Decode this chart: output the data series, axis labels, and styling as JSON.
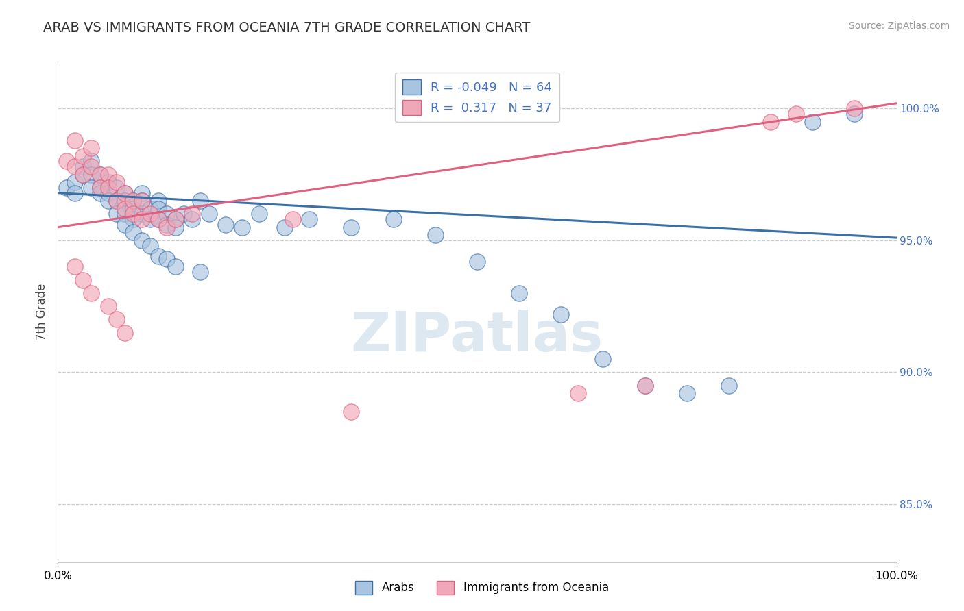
{
  "title": "ARAB VS IMMIGRANTS FROM OCEANIA 7TH GRADE CORRELATION CHART",
  "source": "Source: ZipAtlas.com",
  "ylabel": "7th Grade",
  "watermark": "ZIPatlas",
  "blue_label": "Arabs",
  "pink_label": "Immigrants from Oceania",
  "blue_R": -0.049,
  "blue_N": 64,
  "pink_R": 0.317,
  "pink_N": 37,
  "blue_color": "#a8c4e0",
  "pink_color": "#f0a8b8",
  "blue_line_color": "#3a6fa8",
  "pink_line_color": "#e06080",
  "x_min": 0.0,
  "x_max": 1.0,
  "y_min": 0.828,
  "y_max": 1.018,
  "right_yticks": [
    0.85,
    0.9,
    0.95,
    1.0
  ],
  "right_yticklabels": [
    "85.0%",
    "90.0%",
    "95.0%",
    "100.0%"
  ],
  "dashed_line_y": [
    1.0,
    0.95,
    0.9,
    0.85
  ],
  "blue_trend_x0": 0.0,
  "blue_trend_y0": 0.968,
  "blue_trend_x1": 1.0,
  "blue_trend_y1": 0.951,
  "pink_trend_x0": 0.0,
  "pink_trend_y0": 0.955,
  "pink_trend_x1": 1.0,
  "pink_trend_y1": 1.002,
  "blue_scatter_x": [
    0.01,
    0.02,
    0.02,
    0.03,
    0.03,
    0.04,
    0.04,
    0.04,
    0.05,
    0.05,
    0.05,
    0.06,
    0.06,
    0.06,
    0.07,
    0.07,
    0.07,
    0.08,
    0.08,
    0.08,
    0.09,
    0.09,
    0.09,
    0.1,
    0.1,
    0.1,
    0.11,
    0.11,
    0.12,
    0.12,
    0.12,
    0.13,
    0.13,
    0.14,
    0.14,
    0.15,
    0.16,
    0.17,
    0.18,
    0.2,
    0.22,
    0.24,
    0.27,
    0.3,
    0.35,
    0.4,
    0.45,
    0.5,
    0.55,
    0.6,
    0.65,
    0.7,
    0.75,
    0.8,
    0.08,
    0.09,
    0.1,
    0.11,
    0.12,
    0.13,
    0.14,
    0.17,
    0.9,
    0.95
  ],
  "blue_scatter_y": [
    0.97,
    0.972,
    0.968,
    0.978,
    0.975,
    0.98,
    0.975,
    0.97,
    0.975,
    0.97,
    0.968,
    0.972,
    0.968,
    0.965,
    0.97,
    0.965,
    0.96,
    0.968,
    0.965,
    0.96,
    0.965,
    0.962,
    0.958,
    0.968,
    0.965,
    0.96,
    0.962,
    0.958,
    0.965,
    0.962,
    0.958,
    0.96,
    0.956,
    0.958,
    0.955,
    0.96,
    0.958,
    0.965,
    0.96,
    0.956,
    0.955,
    0.96,
    0.955,
    0.958,
    0.955,
    0.958,
    0.952,
    0.942,
    0.93,
    0.922,
    0.905,
    0.895,
    0.892,
    0.895,
    0.956,
    0.953,
    0.95,
    0.948,
    0.944,
    0.943,
    0.94,
    0.938,
    0.995,
    0.998
  ],
  "pink_scatter_x": [
    0.01,
    0.02,
    0.02,
    0.03,
    0.03,
    0.04,
    0.04,
    0.05,
    0.05,
    0.06,
    0.06,
    0.07,
    0.07,
    0.08,
    0.08,
    0.09,
    0.09,
    0.1,
    0.1,
    0.11,
    0.12,
    0.13,
    0.14,
    0.16,
    0.02,
    0.03,
    0.04,
    0.06,
    0.07,
    0.08,
    0.28,
    0.35,
    0.62,
    0.7,
    0.85,
    0.88,
    0.95
  ],
  "pink_scatter_y": [
    0.98,
    0.988,
    0.978,
    0.982,
    0.975,
    0.978,
    0.985,
    0.975,
    0.97,
    0.975,
    0.97,
    0.972,
    0.965,
    0.968,
    0.962,
    0.965,
    0.96,
    0.965,
    0.958,
    0.96,
    0.958,
    0.955,
    0.958,
    0.96,
    0.94,
    0.935,
    0.93,
    0.925,
    0.92,
    0.915,
    0.958,
    0.885,
    0.892,
    0.895,
    0.995,
    0.998,
    1.0
  ]
}
